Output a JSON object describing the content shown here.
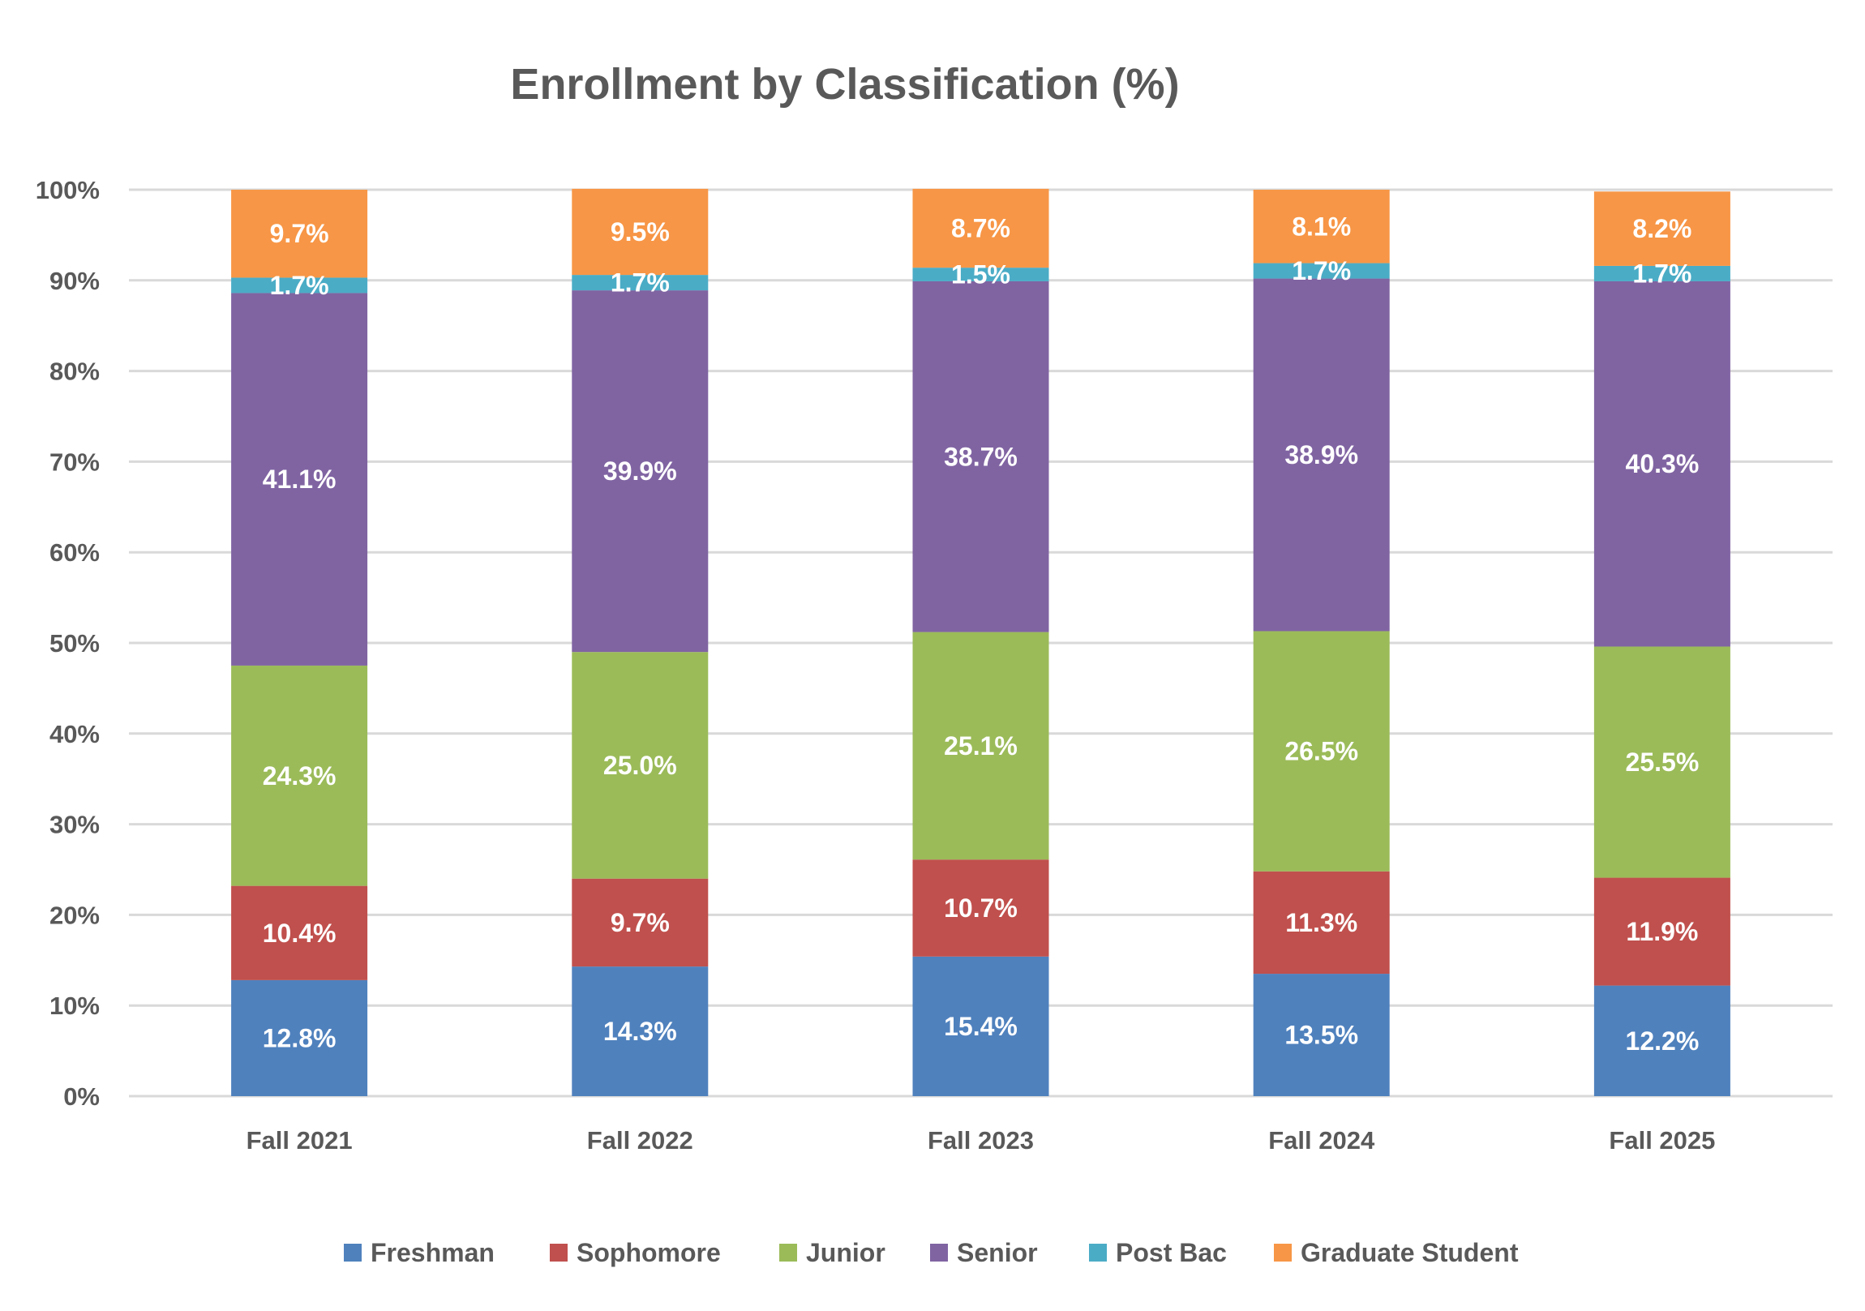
{
  "chart_data": {
    "type": "bar",
    "stacked": true,
    "title": "Enrollment by Classification (%)",
    "xlabel": "",
    "ylabel": "",
    "ylim": [
      0,
      100
    ],
    "y_ticks": [
      "0%",
      "10%",
      "20%",
      "30%",
      "40%",
      "50%",
      "60%",
      "70%",
      "80%",
      "90%",
      "100%"
    ],
    "grid": true,
    "legend_position": "bottom",
    "categories": [
      "Fall 2021",
      "Fall 2022",
      "Fall 2023",
      "Fall 2024",
      "Fall 2025"
    ],
    "series": [
      {
        "name": "Freshman",
        "color": "#4F81BD",
        "values": [
          12.8,
          14.3,
          15.4,
          13.5,
          12.2
        ]
      },
      {
        "name": "Sophomore",
        "color": "#C0504D",
        "values": [
          10.4,
          9.7,
          10.7,
          11.3,
          11.9
        ]
      },
      {
        "name": "Junior",
        "color": "#9BBB59",
        "values": [
          24.3,
          25.0,
          25.1,
          26.5,
          25.5
        ]
      },
      {
        "name": "Senior",
        "color": "#8064A2",
        "values": [
          41.1,
          39.9,
          38.7,
          38.9,
          40.3
        ]
      },
      {
        "name": "Post Bac",
        "color": "#4BACC6",
        "values": [
          1.7,
          1.7,
          1.5,
          1.7,
          1.7
        ]
      },
      {
        "name": "Graduate Student",
        "color": "#F79646",
        "values": [
          9.7,
          9.5,
          8.7,
          8.1,
          8.2
        ]
      }
    ]
  }
}
